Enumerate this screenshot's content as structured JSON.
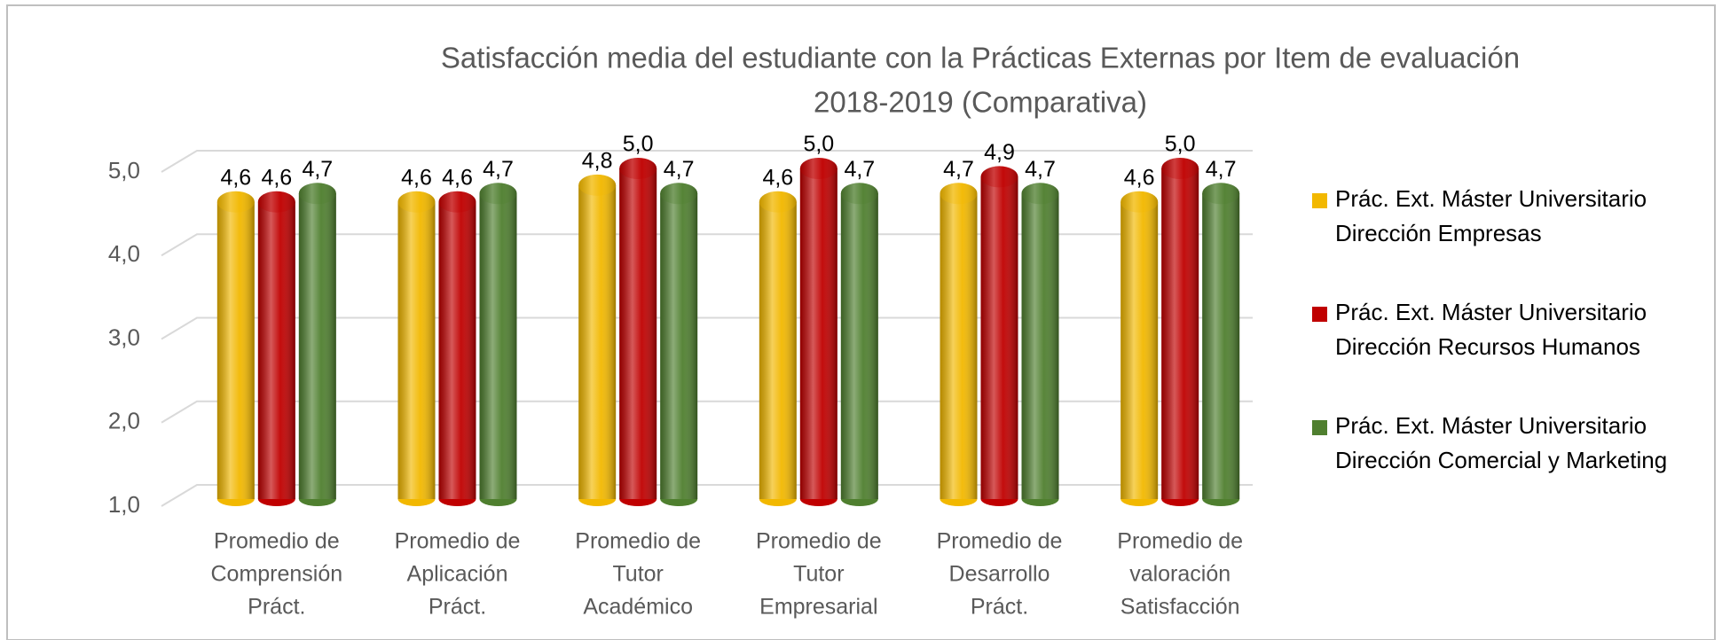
{
  "chart_data": {
    "type": "bar",
    "title": [
      "Satisfacción media del estudiante con la Prácticas Externas por Item de evaluación",
      "2018-2019 (Comparativa)"
    ],
    "categories": [
      [
        "Promedio de",
        "Comprensión",
        "Práct."
      ],
      [
        "Promedio de",
        "Aplicación",
        "Práct."
      ],
      [
        "Promedio de",
        "Tutor",
        "Académico"
      ],
      [
        "Promedio de",
        "Tutor",
        "Empresarial"
      ],
      [
        "Promedio de",
        "Desarrollo",
        "Práct."
      ],
      [
        "Promedio de",
        "valoración",
        "Satisfacción"
      ]
    ],
    "series": [
      {
        "name": "Prác. Ext. Máster Universitario Dirección Empresas",
        "color": "#f2b800",
        "values": [
          4.6,
          4.6,
          4.8,
          4.6,
          4.7,
          4.6
        ],
        "value_labels": [
          "4,6",
          "4,6",
          "4,8",
          "4,6",
          "4,7",
          "4,6"
        ]
      },
      {
        "name": "Prác. Ext. Máster Universitario Dirección Recursos Humanos",
        "color": "#c00000",
        "values": [
          4.6,
          4.6,
          5.0,
          5.0,
          4.9,
          5.0
        ],
        "value_labels": [
          "4,6",
          "4,6",
          "5,0",
          "5,0",
          "4,9",
          "5,0"
        ]
      },
      {
        "name": "Prác. Ext. Máster Universitario Dirección Comercial y Marketing",
        "color": "#4f7f2f",
        "values": [
          4.7,
          4.7,
          4.7,
          4.7,
          4.7,
          4.7
        ],
        "value_labels": [
          "4,7",
          "4,7",
          "4,7",
          "4,7",
          "4,7",
          "4,7"
        ]
      }
    ],
    "ylim": [
      1,
      5
    ],
    "yticks": [
      {
        "value": 1,
        "label": "1,0"
      },
      {
        "value": 2,
        "label": "2,0"
      },
      {
        "value": 3,
        "label": "3,0"
      },
      {
        "value": 4,
        "label": "4,0"
      },
      {
        "value": 5,
        "label": "5,0"
      }
    ],
    "grid": true,
    "legend": "right"
  }
}
